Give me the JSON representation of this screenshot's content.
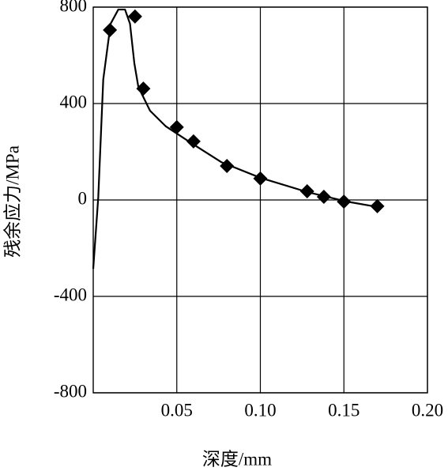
{
  "chart_data": {
    "type": "scatter",
    "xlabel": "深度/mm",
    "ylabel": "残余应力/MPa",
    "xlim": [
      0,
      0.2
    ],
    "ylim": [
      -800,
      800
    ],
    "xticks": [
      0.05,
      {
        "value": 0.1,
        "label": "0.10"
      },
      0.15,
      {
        "value": 0.2,
        "label": "0.20"
      }
    ],
    "yticks": [
      -800,
      -400,
      0,
      400,
      800
    ],
    "grid": true,
    "series": [
      {
        "type": "scatter",
        "marker": "diamond",
        "color": "#000000",
        "x": [
          0.01,
          0.025,
          0.03,
          0.05,
          0.06,
          0.08,
          0.1,
          0.128,
          0.138,
          0.15,
          0.17
        ],
        "values": [
          705,
          761,
          462,
          302,
          243,
          141,
          89,
          36,
          13,
          -7,
          -26
        ]
      },
      {
        "type": "line",
        "color": "#000000",
        "x": [
          0,
          0.003,
          0.006,
          0.0104,
          0.015,
          0.019,
          0.022,
          0.0246,
          0.027,
          0.034,
          0.0435,
          0.058,
          0.0766,
          0.1,
          0.128,
          0.152,
          0.171
        ],
        "values": [
          -285,
          10,
          500,
          731,
          790,
          790,
          731,
          567,
          469,
          370,
          305,
          239,
          157,
          92,
          33,
          -7,
          -30
        ]
      }
    ]
  }
}
